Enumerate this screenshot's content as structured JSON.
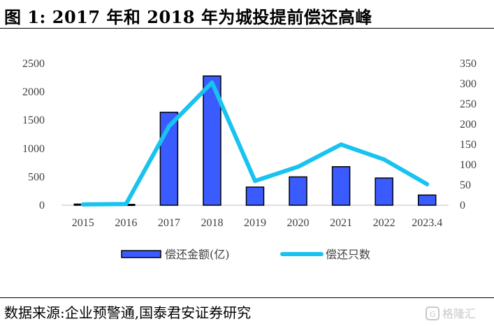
{
  "title": "图 1:  2017 年和 2018 年为城投提前偿还高峰",
  "source": "数据来源:企业预警通,国泰君安证券研究",
  "watermark": "格隆汇",
  "colors": {
    "bar": "#3a5bff",
    "bar_border": "#000000",
    "line": "#19c3f0",
    "axis_text": "#404040"
  },
  "chart_data": {
    "type": "bar",
    "categories": [
      "2015",
      "2016",
      "2017",
      "2018",
      "2019",
      "2020",
      "2021",
      "2022",
      "2023.4"
    ],
    "series": [
      {
        "name": "偿还金额(亿)",
        "type": "bar",
        "axis": "left",
        "values": [
          20,
          15,
          1640,
          2280,
          320,
          500,
          680,
          480,
          180
        ]
      },
      {
        "name": "偿还只数",
        "type": "line",
        "axis": "right",
        "values": [
          2,
          3,
          195,
          303,
          60,
          95,
          150,
          113,
          52
        ]
      }
    ],
    "y_left": {
      "min": 0,
      "max": 2500,
      "ticks": [
        "0",
        "500",
        "1000",
        "1500",
        "2000",
        "2500"
      ]
    },
    "y_right": {
      "min": 0,
      "max": 350,
      "ticks": [
        "0",
        "50",
        "100",
        "150",
        "200",
        "250",
        "300",
        "350"
      ]
    },
    "grid": false,
    "legend": "bottom"
  }
}
